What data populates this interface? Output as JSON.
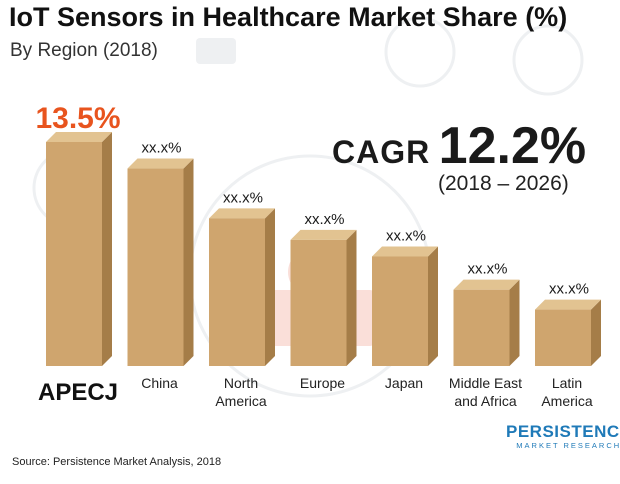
{
  "title": "IoT Sensors in Healthcare Market Share (%)",
  "subtitle": "By Region (2018)",
  "cagr": {
    "label": "CAGR",
    "value": "12.2%",
    "period": "(2018 – 2026)"
  },
  "source": "Source: Persistence Market Analysis, 2018",
  "logo": {
    "name": "PERSISTENCE",
    "sub": "MARKET RESEARCH"
  },
  "colors": {
    "bar_front": "#cfa56e",
    "bar_side": "#a57d48",
    "bar_top": "#e2c391",
    "highlight": "#e8541e",
    "watermark": "#eef0f2",
    "watermark_red": "#f7c6bb",
    "logo": "#1f7ab8"
  },
  "chart_data": {
    "type": "bar",
    "categories": [
      "APECJ",
      "China",
      "North America",
      "Europe",
      "Japan",
      "Middle East and Africa",
      "Latin America"
    ],
    "values": [
      13.5,
      11.9,
      8.9,
      7.6,
      6.6,
      4.6,
      3.4
    ],
    "data_labels": [
      "13.5%",
      "xx.x%",
      "xx.x%",
      "xx.x%",
      "xx.x%",
      "xx.x%",
      "xx.x%"
    ],
    "highlight_index": 0,
    "ylim": [
      0,
      13.5
    ]
  }
}
